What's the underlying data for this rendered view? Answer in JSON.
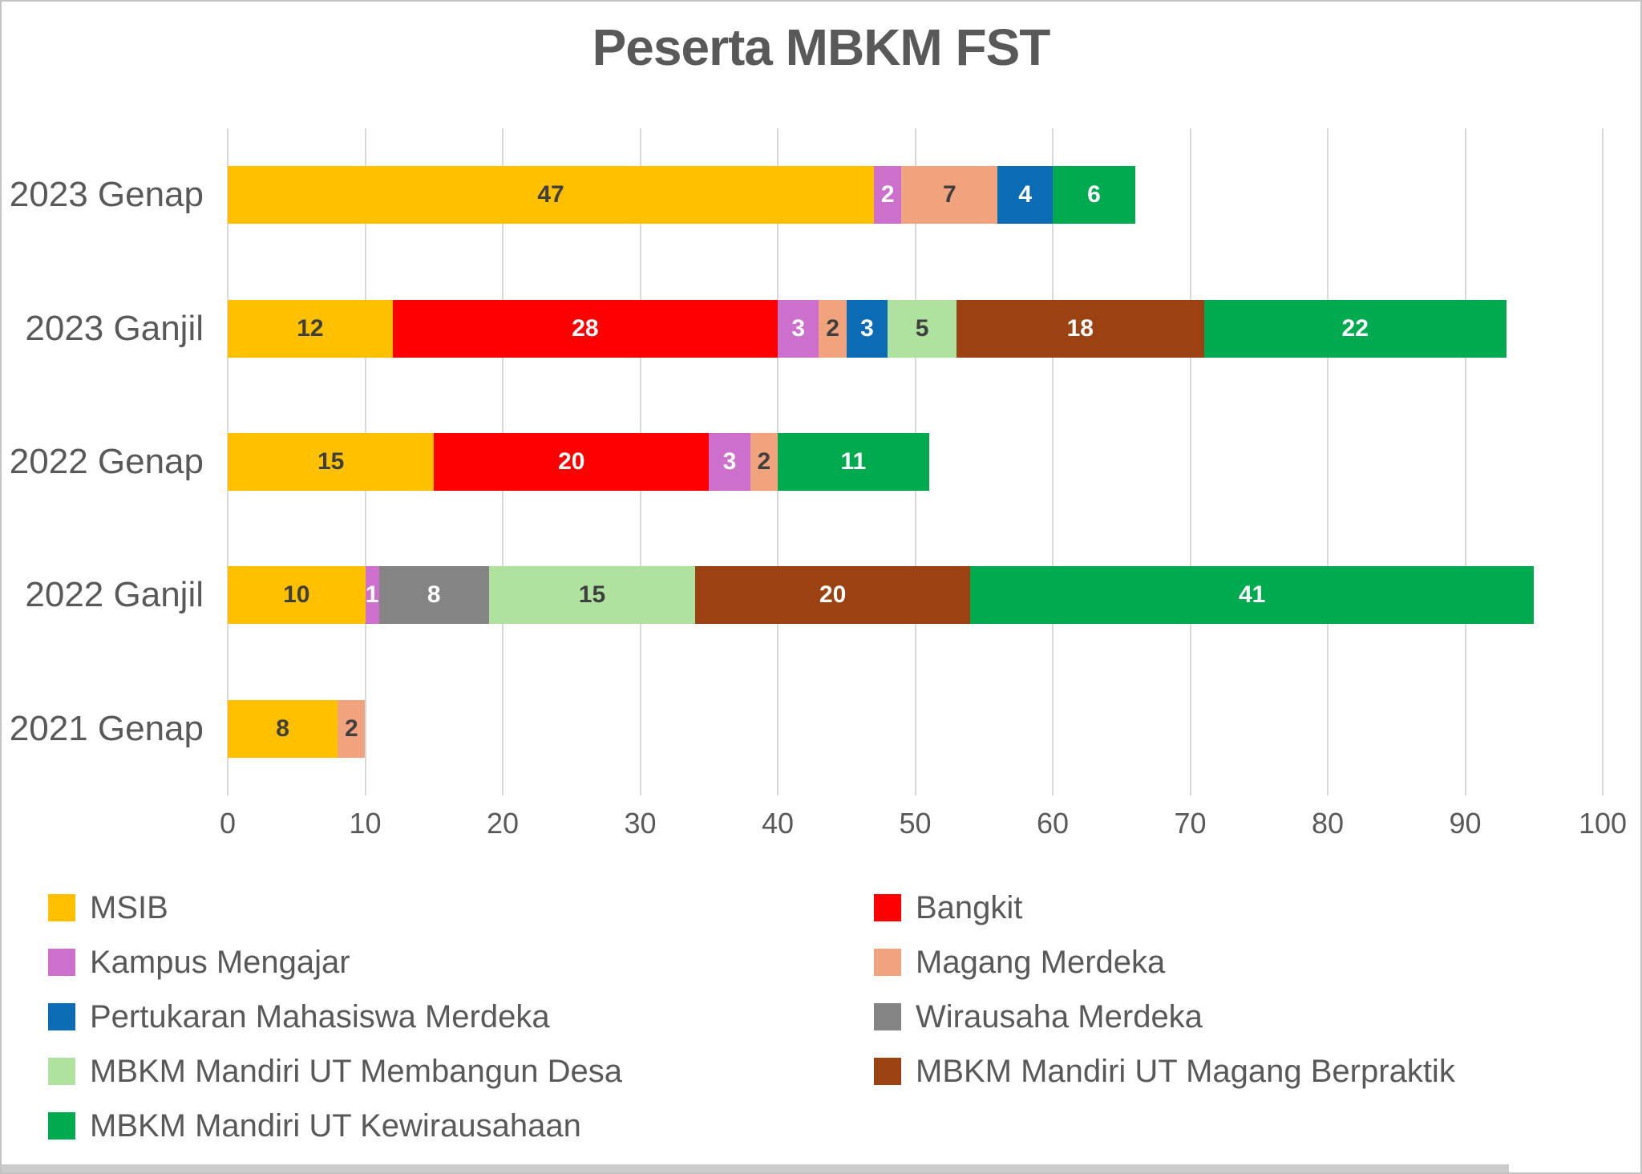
{
  "page": {
    "title": "Peserta MBKM FST"
  },
  "chart_data": {
    "type": "bar",
    "orientation": "horizontal",
    "stacked": true,
    "title": "Peserta MBKM FST",
    "categories": [
      "2023 Genap",
      "2023 Ganjil",
      "2022 Genap",
      "2022 Ganjil",
      "2021 Genap"
    ],
    "series": [
      {
        "name": "MSIB",
        "color": "#FFC000",
        "label_color": "#3F3F3F",
        "values": [
          47,
          12,
          15,
          10,
          8
        ]
      },
      {
        "name": "Bangkit",
        "color": "#FE0000",
        "label_color": "#FFFFFF",
        "values": [
          0,
          28,
          20,
          0,
          0
        ]
      },
      {
        "name": "Kampus Mengajar",
        "color": "#CD6FCC",
        "label_color": "#FFFFFF",
        "values": [
          2,
          3,
          3,
          1,
          0
        ]
      },
      {
        "name": "Magang Merdeka",
        "color": "#F1A37E",
        "label_color": "#3F3F3F",
        "values": [
          7,
          2,
          2,
          0,
          2
        ]
      },
      {
        "name": "Pertukaran Mahasiswa Merdeka",
        "color": "#0B6BB5",
        "label_color": "#FFFFFF",
        "values": [
          4,
          3,
          0,
          0,
          0
        ]
      },
      {
        "name": "Wirausaha Merdeka",
        "color": "#848484",
        "label_color": "#FFFFFF",
        "values": [
          0,
          0,
          0,
          8,
          0
        ]
      },
      {
        "name": "MBKM Mandiri UT Membangun Desa",
        "color": "#AFE29E",
        "label_color": "#3F3F3F",
        "values": [
          0,
          5,
          0,
          15,
          0
        ]
      },
      {
        "name": "MBKM Mandiri UT Magang Berpraktik",
        "color": "#9C4112",
        "label_color": "#FFFFFF",
        "values": [
          0,
          18,
          0,
          20,
          0
        ]
      },
      {
        "name": "MBKM Mandiri UT Kewirausahaan",
        "color": "#00AB4F",
        "label_color": "#FFFFFF",
        "values": [
          6,
          22,
          11,
          41,
          0
        ]
      }
    ],
    "xlabel": "",
    "ylabel": "",
    "xlim": [
      0,
      100
    ],
    "x_ticks": [
      "0",
      "10",
      "20",
      "30",
      "40",
      "50",
      "60",
      "70",
      "80",
      "90",
      "100"
    ],
    "grid": true,
    "gridline_color": "#D9D9D9",
    "text_color": "#595959",
    "legend_position": "bottom",
    "legend_columns": 2
  }
}
